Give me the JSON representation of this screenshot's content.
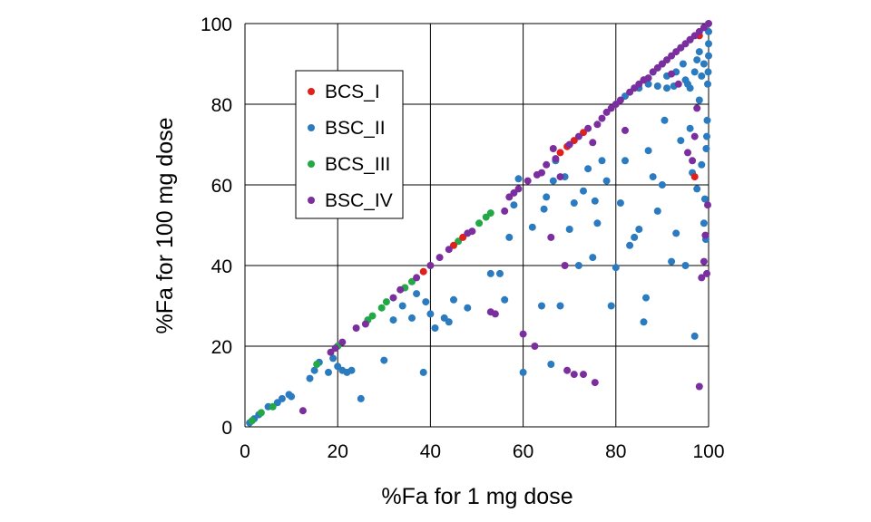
{
  "chart_data": {
    "type": "scatter",
    "title": "",
    "xlabel": "%Fa  for 1 mg dose",
    "ylabel": "%Fa  for 100 mg dose",
    "xlim": [
      0,
      100
    ],
    "ylim": [
      0,
      100
    ],
    "x_ticks": [
      "0",
      "20",
      "40",
      "60",
      "80",
      "100"
    ],
    "y_ticks": [
      "0",
      "20",
      "40",
      "60",
      "80",
      "100"
    ],
    "grid": true,
    "legend_position": "upper-left",
    "series": [
      {
        "name": "BCS_I",
        "color": "#e0201b",
        "points": [
          [
            38.5,
            38.5
          ],
          [
            45,
            45
          ],
          [
            47,
            47
          ],
          [
            68,
            68
          ],
          [
            69.5,
            69.5
          ],
          [
            71,
            71
          ],
          [
            73,
            73
          ],
          [
            86,
            86
          ],
          [
            97,
            62
          ],
          [
            98,
            97
          ]
        ]
      },
      {
        "name": "BSC_II",
        "color": "#2b7bc0",
        "points": [
          [
            1,
            1
          ],
          [
            2,
            2
          ],
          [
            3,
            3
          ],
          [
            5,
            5
          ],
          [
            7,
            6
          ],
          [
            8,
            7
          ],
          [
            9.5,
            8
          ],
          [
            10,
            7.5
          ],
          [
            14,
            12
          ],
          [
            15,
            14
          ],
          [
            16,
            16
          ],
          [
            18,
            13.5
          ],
          [
            19,
            17
          ],
          [
            20,
            15
          ],
          [
            21,
            14
          ],
          [
            22,
            13.5
          ],
          [
            23,
            14
          ],
          [
            25,
            7
          ],
          [
            30,
            16.5
          ],
          [
            32,
            26.5
          ],
          [
            34,
            30
          ],
          [
            36,
            27
          ],
          [
            37,
            33
          ],
          [
            38.5,
            13.5
          ],
          [
            39,
            31
          ],
          [
            40,
            28
          ],
          [
            41,
            24.5
          ],
          [
            43,
            27
          ],
          [
            44,
            26
          ],
          [
            45,
            31.5
          ],
          [
            48,
            29.5
          ],
          [
            53,
            38
          ],
          [
            55,
            38
          ],
          [
            56,
            31.5
          ],
          [
            57,
            47
          ],
          [
            58,
            55
          ],
          [
            59,
            61.5
          ],
          [
            60,
            13.5
          ],
          [
            62,
            49.5
          ],
          [
            64,
            30
          ],
          [
            64.5,
            54
          ],
          [
            65,
            57
          ],
          [
            66,
            15.5
          ],
          [
            66.5,
            61
          ],
          [
            67,
            66
          ],
          [
            68,
            30
          ],
          [
            69,
            62
          ],
          [
            70,
            49
          ],
          [
            71,
            55.5
          ],
          [
            72,
            40
          ],
          [
            73,
            58.5
          ],
          [
            74,
            64
          ],
          [
            75,
            42
          ],
          [
            75.5,
            56
          ],
          [
            76,
            50.5
          ],
          [
            77,
            66
          ],
          [
            78,
            61
          ],
          [
            79,
            30
          ],
          [
            80,
            39.5
          ],
          [
            81,
            55.5
          ],
          [
            82,
            66
          ],
          [
            83,
            45
          ],
          [
            84,
            47
          ],
          [
            85,
            49
          ],
          [
            86,
            26
          ],
          [
            86.5,
            32
          ],
          [
            87,
            68.5
          ],
          [
            88,
            62
          ],
          [
            89,
            53.5
          ],
          [
            90,
            60
          ],
          [
            90.5,
            76
          ],
          [
            91,
            84
          ],
          [
            92,
            41
          ],
          [
            92.5,
            84.5
          ],
          [
            93,
            48
          ],
          [
            94,
            71
          ],
          [
            95,
            40
          ],
          [
            95.5,
            85
          ],
          [
            96,
            74
          ],
          [
            96.5,
            63
          ],
          [
            97,
            22.5
          ],
          [
            97.5,
            59
          ],
          [
            98,
            81
          ],
          [
            98.5,
            65
          ],
          [
            99,
            50.5
          ],
          [
            99.2,
            56.5
          ],
          [
            99.4,
            46.5
          ],
          [
            99.5,
            69
          ],
          [
            99.6,
            72
          ],
          [
            99.7,
            76
          ],
          [
            99.8,
            85
          ],
          [
            99.9,
            88
          ],
          [
            100,
            92
          ],
          [
            100,
            95
          ],
          [
            100,
            98
          ],
          [
            82,
            82
          ],
          [
            84,
            84
          ],
          [
            88,
            88
          ],
          [
            90,
            90
          ],
          [
            94,
            94
          ],
          [
            96,
            96
          ],
          [
            99,
            99
          ],
          [
            85,
            84
          ],
          [
            87,
            85
          ],
          [
            89,
            84.5
          ],
          [
            91,
            87
          ],
          [
            93,
            88
          ],
          [
            94.5,
            90
          ],
          [
            95,
            86
          ],
          [
            96,
            84
          ],
          [
            97,
            88
          ],
          [
            97.5,
            91
          ],
          [
            98,
            93
          ],
          [
            98.5,
            87
          ],
          [
            99,
            90
          ]
        ]
      },
      {
        "name": "BCS_III",
        "color": "#22a845",
        "points": [
          [
            1.5,
            1.5
          ],
          [
            3.5,
            3.5
          ],
          [
            6,
            5
          ],
          [
            15.5,
            15.5
          ],
          [
            20,
            20
          ],
          [
            26.5,
            26.5
          ],
          [
            27.5,
            27.5
          ],
          [
            29.5,
            29.5
          ],
          [
            30.5,
            31
          ],
          [
            34.5,
            34.5
          ],
          [
            36,
            36
          ],
          [
            46,
            46
          ],
          [
            50.5,
            50.5
          ],
          [
            52,
            52
          ],
          [
            53,
            53
          ]
        ]
      },
      {
        "name": "BSC_IV",
        "color": "#7b2f9e",
        "points": [
          [
            12.5,
            4
          ],
          [
            18.5,
            18.5
          ],
          [
            19.5,
            19.5
          ],
          [
            21,
            21
          ],
          [
            24,
            24.5
          ],
          [
            26,
            25.5
          ],
          [
            32,
            32
          ],
          [
            33.5,
            34
          ],
          [
            37,
            37
          ],
          [
            40,
            40
          ],
          [
            42,
            42
          ],
          [
            44,
            44
          ],
          [
            48,
            48
          ],
          [
            49,
            48.5
          ],
          [
            53,
            28.5
          ],
          [
            54,
            28
          ],
          [
            56,
            53.5
          ],
          [
            57,
            57
          ],
          [
            58,
            58
          ],
          [
            59,
            59
          ],
          [
            60,
            23
          ],
          [
            61,
            61
          ],
          [
            62.5,
            20
          ],
          [
            63,
            62.5
          ],
          [
            64,
            63
          ],
          [
            65,
            65
          ],
          [
            66,
            47
          ],
          [
            67,
            66.5
          ],
          [
            68,
            62
          ],
          [
            69,
            40
          ],
          [
            70,
            70
          ],
          [
            71,
            13
          ],
          [
            72,
            72
          ],
          [
            74,
            74
          ],
          [
            75,
            70.5
          ],
          [
            76,
            75
          ],
          [
            77,
            76.5
          ],
          [
            78,
            78
          ],
          [
            79,
            79
          ],
          [
            80,
            80
          ],
          [
            81,
            81
          ],
          [
            82,
            73.5
          ],
          [
            83,
            83
          ],
          [
            84,
            84
          ],
          [
            85,
            85
          ],
          [
            86,
            86
          ],
          [
            87,
            86.5
          ],
          [
            88,
            88
          ],
          [
            89,
            89
          ],
          [
            90,
            90
          ],
          [
            91,
            91
          ],
          [
            92,
            92
          ],
          [
            93,
            93
          ],
          [
            94,
            94
          ],
          [
            95,
            95
          ],
          [
            96,
            96
          ],
          [
            97,
            97
          ],
          [
            98,
            98
          ],
          [
            99,
            99
          ],
          [
            100,
            100
          ],
          [
            95.5,
            68
          ],
          [
            96.5,
            66
          ],
          [
            97,
            72
          ],
          [
            97.5,
            79
          ],
          [
            98,
            10
          ],
          [
            98.5,
            37
          ],
          [
            99,
            41
          ],
          [
            99.3,
            47.5
          ],
          [
            99.6,
            38
          ],
          [
            99.8,
            55
          ],
          [
            73,
            13
          ],
          [
            75.5,
            11
          ],
          [
            69.5,
            14
          ],
          [
            66.5,
            69
          ],
          [
            93.5,
            85
          ],
          [
            92,
            87.5
          ]
        ]
      }
    ]
  }
}
